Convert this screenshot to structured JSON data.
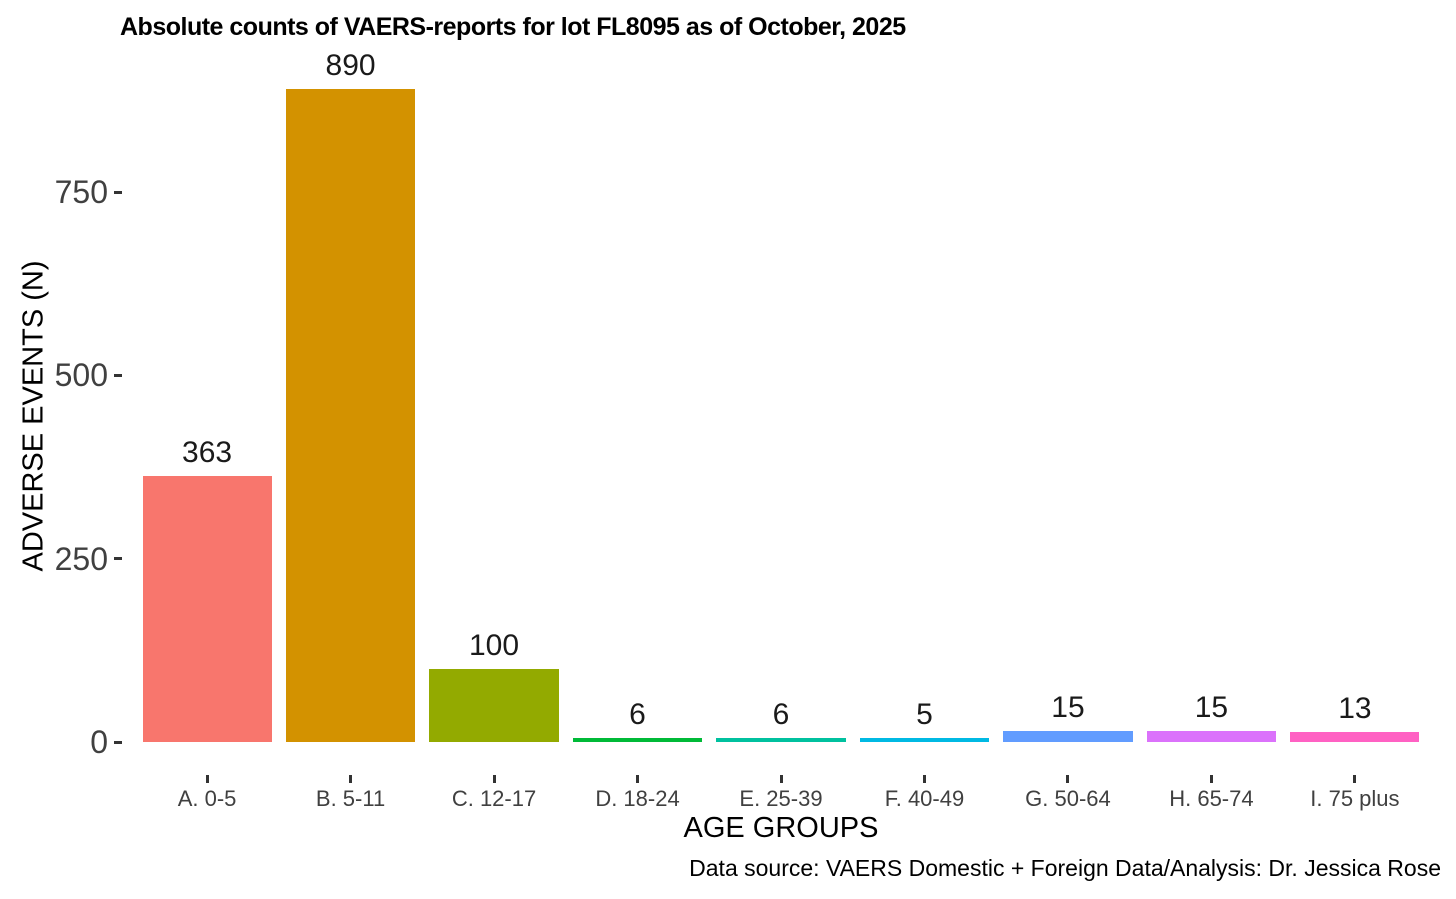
{
  "chart_data": {
    "type": "bar",
    "title": "Absolute counts of VAERS-reports for lot FL8095 as of October, 2025",
    "xlabel": "AGE GROUPS",
    "ylabel": "ADVERSE EVENTS (N)",
    "caption": "Data source: VAERS Domestic + Foreign Data/Analysis: Dr. Jessica Rose",
    "categories": [
      "A. 0-5",
      "B. 5-11",
      "C. 12-17",
      "D. 18-24",
      "E. 25-39",
      "F. 40-49",
      "G. 50-64",
      "H. 65-74",
      "I. 75 plus"
    ],
    "values": [
      363,
      890,
      100,
      6,
      6,
      5,
      15,
      15,
      13
    ],
    "bar_colors": [
      "#F8766D",
      "#D39200",
      "#93AA00",
      "#00BA38",
      "#00C19F",
      "#00B9E3",
      "#619CFF",
      "#DB72FB",
      "#FF61C3"
    ],
    "yticks": [
      0,
      250,
      500,
      750
    ],
    "ylim": [
      0,
      935
    ],
    "grid": false,
    "legend": "none",
    "background_color": "#FFFFFF",
    "tick_mark_color": "#333333",
    "axis_text_color": "#404040",
    "title_color": "#000000"
  }
}
